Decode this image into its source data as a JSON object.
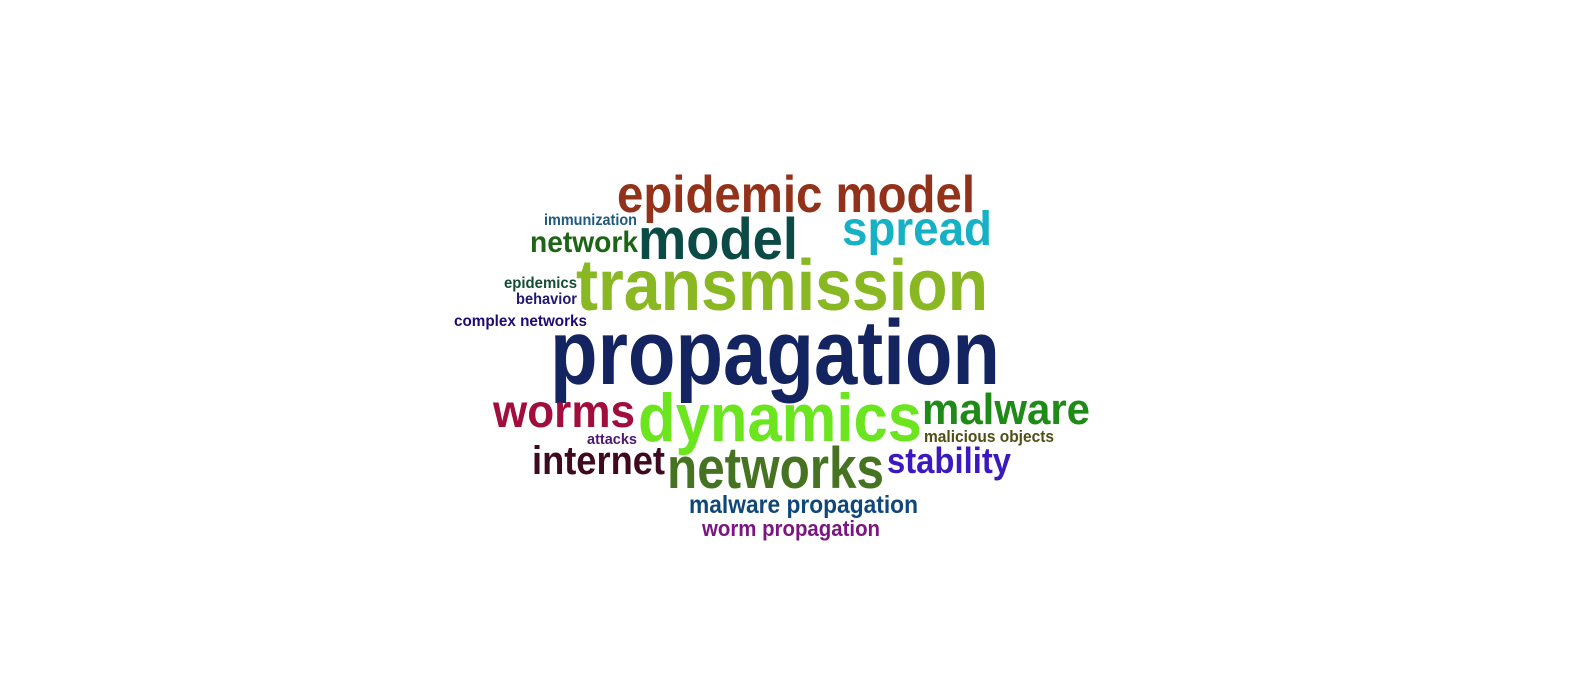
{
  "words": [
    {
      "text": "epidemic model",
      "color": "#93321a"
    },
    {
      "text": "immunization",
      "color": "#1f5a80"
    },
    {
      "text": "model",
      "color": "#0b4a45"
    },
    {
      "text": "spread",
      "color": "#17b1c6"
    },
    {
      "text": "network",
      "color": "#1d6416"
    },
    {
      "text": "transmission",
      "color": "#8ab823"
    },
    {
      "text": "epidemics",
      "color": "#154c35"
    },
    {
      "text": "behavior",
      "color": "#211a70"
    },
    {
      "text": "complex networks",
      "color": "#200a72"
    },
    {
      "text": "propagation",
      "color": "#132460"
    },
    {
      "text": "worms",
      "color": "#a10d3c"
    },
    {
      "text": "dynamics",
      "color": "#6ae51e"
    },
    {
      "text": "malware",
      "color": "#1f8a17"
    },
    {
      "text": "attacks",
      "color": "#4a1872"
    },
    {
      "text": "malicious objects",
      "color": "#4e4f14"
    },
    {
      "text": "internet",
      "color": "#3f0a20"
    },
    {
      "text": "networks",
      "color": "#467322"
    },
    {
      "text": "stability",
      "color": "#3c19bf"
    },
    {
      "text": "malware propagation",
      "color": "#10477a"
    },
    {
      "text": "worm propagation",
      "color": "#7b1680"
    }
  ]
}
